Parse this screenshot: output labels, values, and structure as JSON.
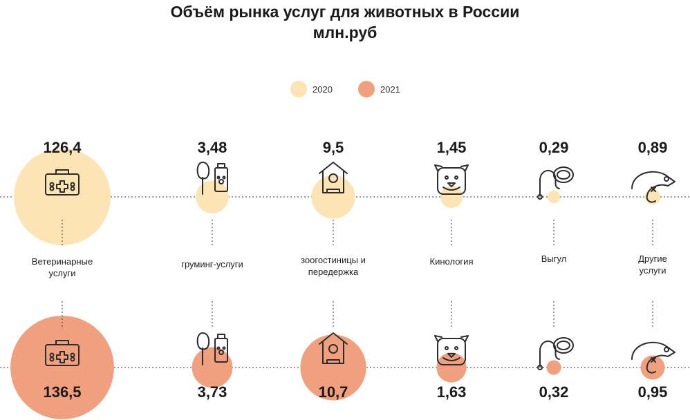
{
  "chart_data": {
    "type": "bubble",
    "title": "Объём рынка услуг для животных в России",
    "subtitle": "млн.руб",
    "legend": {
      "placement": "top-center",
      "items": [
        {
          "label": "2020",
          "color": "#fde4b5"
        },
        {
          "label": "2021",
          "color": "#f0a07e"
        }
      ]
    },
    "series": [
      {
        "name": "2020",
        "color": "#fde4b5",
        "value_labels": [
          "126,4",
          "3,48",
          "9,5",
          "1,45",
          "0,29",
          "0,89"
        ],
        "values": [
          126.4,
          3.48,
          9.5,
          1.45,
          0.29,
          0.89
        ]
      },
      {
        "name": "2021",
        "color": "#f0a07e",
        "value_labels": [
          "136,5",
          "3,73",
          "10,7",
          "1,63",
          "0,32",
          "0,95"
        ],
        "values": [
          136.5,
          3.73,
          10.7,
          1.63,
          0.32,
          0.95
        ]
      }
    ],
    "categories": [
      {
        "label": "Ветеринарные услуги",
        "icon": "vet-kit-icon"
      },
      {
        "label": "груминг-услуги",
        "icon": "grooming-icon"
      },
      {
        "label": "зоогостиницы и передержка",
        "icon": "pet-house-icon"
      },
      {
        "label": "Кинология",
        "icon": "dog-face-icon"
      },
      {
        "label": "Выгул",
        "icon": "leash-collar-icon"
      },
      {
        "label": "Другие услуги",
        "icon": "chameleon-icon"
      }
    ],
    "bubble_sizes_2020": [
      1.0,
      0.34,
      0.45,
      0.23,
      0.13,
      0.16
    ],
    "bubble_sizes_2021": [
      1.07,
      0.42,
      0.68,
      0.31,
      0.15,
      0.25
    ],
    "grid": false
  }
}
